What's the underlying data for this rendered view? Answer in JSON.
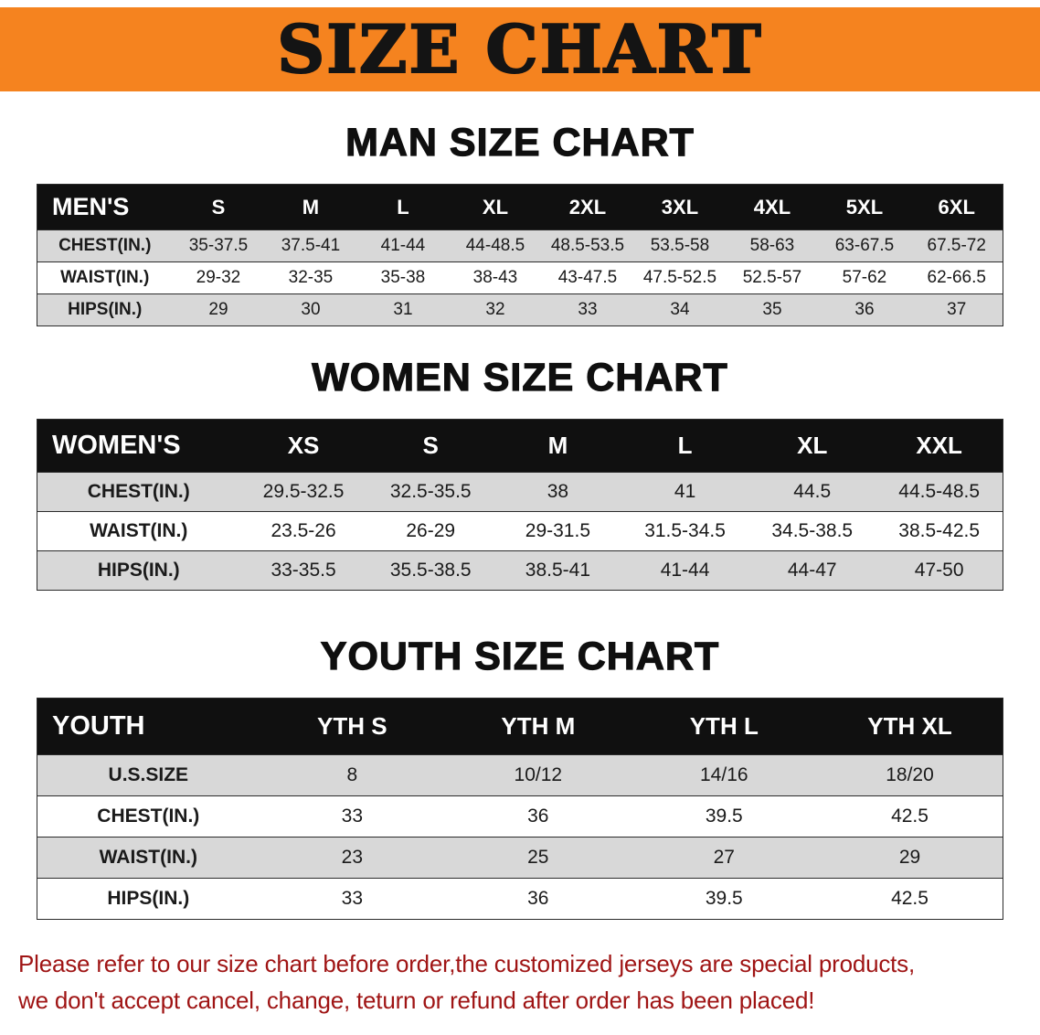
{
  "banner": {
    "title": "SIZE CHART"
  },
  "sections": [
    {
      "heading": "MAN SIZE CHART",
      "table": {
        "header": [
          "MEN'S",
          "S",
          "M",
          "L",
          "XL",
          "2XL",
          "3XL",
          "4XL",
          "5XL",
          "6XL"
        ],
        "rows": [
          [
            "CHEST(IN.)",
            "35-37.5",
            "37.5-41",
            "41-44",
            "44-48.5",
            "48.5-53.5",
            "53.5-58",
            "58-63",
            "63-67.5",
            "67.5-72"
          ],
          [
            "WAIST(IN.)",
            "29-32",
            "32-35",
            "35-38",
            "38-43",
            "43-47.5",
            "47.5-52.5",
            "52.5-57",
            "57-62",
            "62-66.5"
          ],
          [
            "HIPS(IN.)",
            "29",
            "30",
            "31",
            "32",
            "33",
            "34",
            "35",
            "36",
            "37"
          ]
        ]
      }
    },
    {
      "heading": "WOMEN SIZE CHART",
      "table": {
        "header": [
          "WOMEN'S",
          "XS",
          "S",
          "M",
          "L",
          "XL",
          "XXL"
        ],
        "rows": [
          [
            "CHEST(IN.)",
            "29.5-32.5",
            "32.5-35.5",
            "38",
            "41",
            "44.5",
            "44.5-48.5"
          ],
          [
            "WAIST(IN.)",
            "23.5-26",
            "26-29",
            "29-31.5",
            "31.5-34.5",
            "34.5-38.5",
            "38.5-42.5"
          ],
          [
            "HIPS(IN.)",
            "33-35.5",
            "35.5-38.5",
            "38.5-41",
            "41-44",
            "44-47",
            "47-50"
          ]
        ]
      }
    },
    {
      "heading": "YOUTH SIZE CHART",
      "table": {
        "header": [
          "YOUTH",
          "YTH S",
          "YTH M",
          "YTH L",
          "YTH XL"
        ],
        "rows": [
          [
            "U.S.SIZE",
            "8",
            "10/12",
            "14/16",
            "18/20"
          ],
          [
            "CHEST(IN.)",
            "33",
            "36",
            "39.5",
            "42.5"
          ],
          [
            "WAIST(IN.)",
            "23",
            "25",
            "27",
            "29"
          ],
          [
            "HIPS(IN.)",
            "33",
            "36",
            "39.5",
            "42.5"
          ]
        ]
      }
    }
  ],
  "disclaimer": {
    "line1": "Please refer to our size chart before order,the customized jerseys are special products,",
    "line2": "we don't accept cancel, change, teturn or refund after order has been placed!"
  },
  "colors": {
    "banner_bg": "#f5831f",
    "table_header_bg": "#101010",
    "row_alt_bg": "#d8d8d8",
    "disclaimer_text": "#9f1414"
  }
}
